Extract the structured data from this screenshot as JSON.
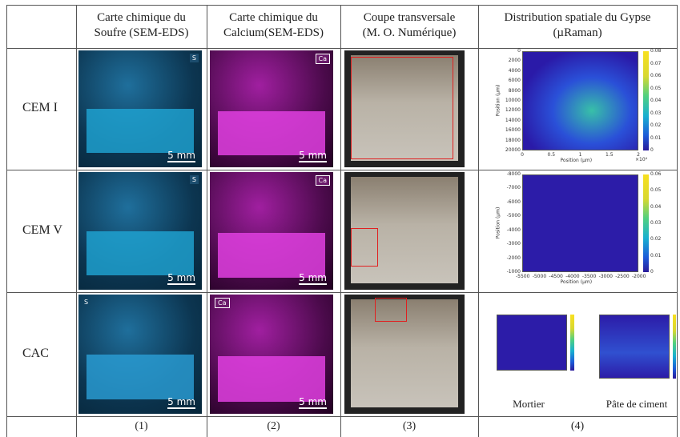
{
  "table": {
    "header": [
      "Carte chimique du\nSoufre (SEM-EDS)",
      "Carte chimique du\nCalcium(SEM-EDS)",
      "Coupe transversale\n(M. O. Numérique)",
      "Distribution spatiale du Gypse\n(µRaman)"
    ],
    "rows": [
      {
        "label": "CEM I",
        "badges": [
          "S",
          "Ca"
        ],
        "scales": [
          "5 mm",
          "5 mm"
        ]
      },
      {
        "label": "CEM V",
        "badges": [
          "S",
          "Ca"
        ],
        "scales": [
          "5 mm",
          "5 mm"
        ]
      },
      {
        "label": "CAC",
        "badges": [
          "S",
          "Ca"
        ],
        "scales": [
          "5 mm",
          "5 mm"
        ]
      }
    ],
    "footer": [
      "(1)",
      "(2)",
      "(3)",
      "(4)"
    ]
  },
  "raman": {
    "plots": [
      {
        "ylabel": "Position (µm)",
        "xlabel": "Position (µm)",
        "yticks": [
          "0",
          "2000",
          "4000",
          "6000",
          "8000",
          "10000",
          "12000",
          "14000",
          "16000",
          "18000",
          "20000"
        ],
        "xticks": [
          "0",
          "0.5",
          "1",
          "1.5",
          "2"
        ],
        "xexp": "×10⁴",
        "cticks": [
          "0.08",
          "0.07",
          "0.06",
          "0.05",
          "0.04",
          "0.03",
          "0.02",
          "0.01",
          "0"
        ]
      },
      {
        "ylabel": "Position (µm)",
        "xlabel": "Position (µm)",
        "yticks": [
          "-8000",
          "-7000",
          "-6000",
          "-5000",
          "-4000",
          "-3000",
          "-2000",
          "-1000"
        ],
        "xticks": [
          "-5500",
          "-5000",
          "-4500",
          "-4000",
          "-3500",
          "-3000",
          "-2500",
          "-2000"
        ],
        "cticks": [
          "0.06",
          "0.05",
          "0.04",
          "0.03",
          "0.02",
          "0.01",
          "0"
        ]
      }
    ],
    "captions": [
      "Mortier",
      "Pâte de ciment"
    ]
  }
}
